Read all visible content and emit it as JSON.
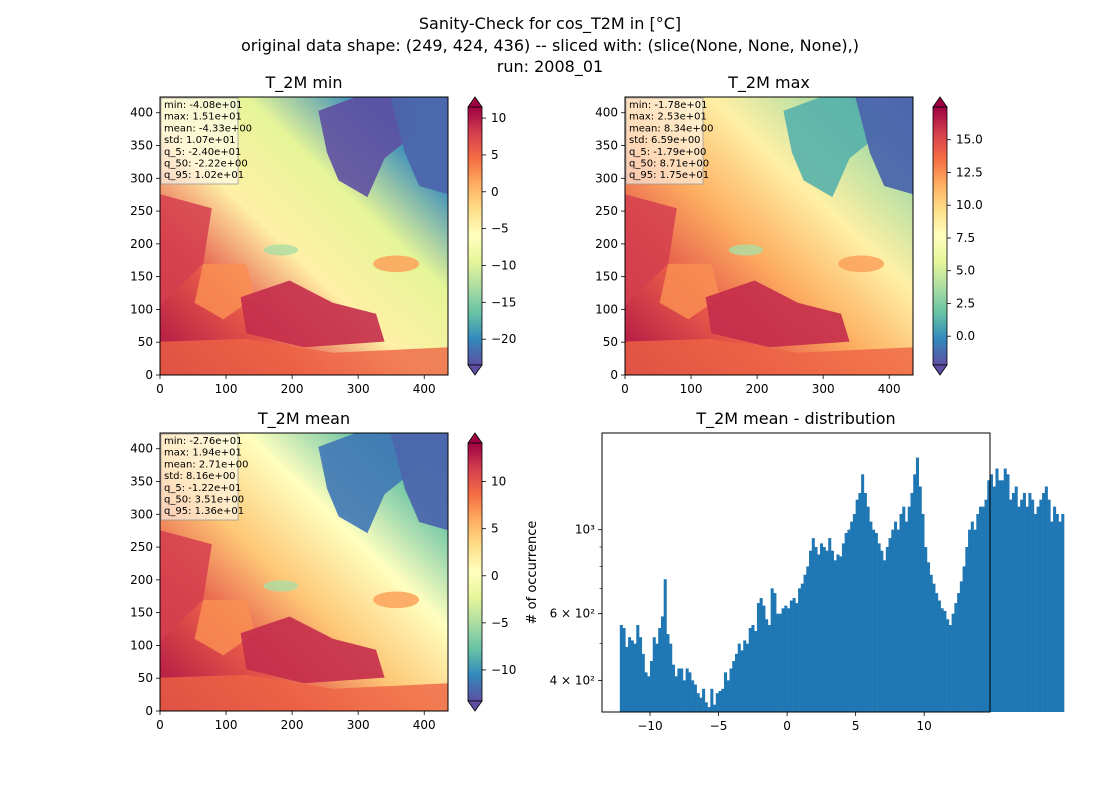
{
  "figure": {
    "suptitle_lines": [
      "Sanity-Check for cos_T2M in [°C]",
      "original data shape: (249, 424, 436) -- sliced with: (slice(None, None, None),)",
      "run: 2008_01"
    ]
  },
  "chart_data": [
    {
      "type": "heatmap",
      "title": "T_2M min",
      "xticks": [
        0,
        100,
        200,
        300,
        400
      ],
      "yticks": [
        0,
        50,
        100,
        150,
        200,
        250,
        300,
        350,
        400
      ],
      "xlim": [
        0,
        436
      ],
      "ylim": [
        0,
        424
      ],
      "colormap": "Spectral_r",
      "colorbar": {
        "range": [
          -23.5,
          11.5
        ],
        "ticks": [
          -20,
          -15,
          -10,
          -5,
          0,
          5,
          10
        ],
        "extend": "both"
      },
      "stats": [
        "min: -4.08e+01",
        "max: 1.51e+01",
        "mean: -4.33e+00",
        "std: 1.07e+01",
        "q_5: -2.40e+01",
        "q_50: -2.22e+00",
        "q_95: 1.02e+01"
      ]
    },
    {
      "type": "heatmap",
      "title": "T_2M max",
      "xticks": [
        0,
        100,
        200,
        300,
        400
      ],
      "yticks": [
        0,
        50,
        100,
        150,
        200,
        250,
        300,
        350,
        400
      ],
      "xlim": [
        0,
        436
      ],
      "ylim": [
        0,
        424
      ],
      "colormap": "Spectral_r",
      "colorbar": {
        "range": [
          -2.2,
          17.5
        ],
        "ticks": [
          "0.0",
          "2.5",
          "5.0",
          "7.5",
          "10.0",
          "12.5",
          "15.0"
        ],
        "extend": "both"
      },
      "stats": [
        "min: -1.78e+01",
        "max: 2.53e+01",
        "mean: 8.34e+00",
        "std: 6.59e+00",
        "q_5: -1.79e+00",
        "q_50: 8.71e+00",
        "q_95: 1.75e+01"
      ]
    },
    {
      "type": "heatmap",
      "title": "T_2M mean",
      "xticks": [
        0,
        100,
        200,
        300,
        400
      ],
      "yticks": [
        0,
        50,
        100,
        150,
        200,
        250,
        300,
        350,
        400
      ],
      "xlim": [
        0,
        436
      ],
      "ylim": [
        0,
        424
      ],
      "colormap": "Spectral_r",
      "colorbar": {
        "range": [
          -13.3,
          14.1
        ],
        "ticks": [
          -10,
          -5,
          0,
          5,
          10
        ],
        "extend": "both"
      },
      "stats": [
        "min: -2.76e+01",
        "max: 1.94e+01",
        "mean: 2.71e+00",
        "std: 8.16e+00",
        "q_5: -1.22e+01",
        "q_50: 3.51e+00",
        "q_95: 1.36e+01"
      ]
    },
    {
      "type": "bar",
      "title": "T_2M mean - distribution",
      "ylabel": "# of occurrence",
      "yscale": "log",
      "xlim": [
        -13.5,
        14.8
      ],
      "ylim": [
        330,
        1800
      ],
      "xticks": [
        -10,
        -5,
        0,
        5,
        10
      ],
      "yticks": [
        {
          "value": 400,
          "label": "4 × 10²"
        },
        {
          "value": 600,
          "label": "6 × 10²"
        },
        {
          "value": 1000,
          "label": "10³"
        }
      ],
      "color": "#1f77b4",
      "bin_start": -12.2,
      "bin_width": 0.2,
      "values": [
        560,
        550,
        490,
        520,
        510,
        500,
        560,
        520,
        470,
        420,
        410,
        450,
        520,
        500,
        550,
        590,
        740,
        530,
        500,
        440,
        410,
        430,
        430,
        400,
        430,
        420,
        400,
        390,
        370,
        360,
        380,
        350,
        340,
        380,
        345,
        370,
        375,
        380,
        420,
        400,
        430,
        450,
        470,
        500,
        480,
        510,
        500,
        550,
        560,
        540,
        640,
        660,
        630,
        580,
        560,
        700,
        680,
        600,
        600,
        620,
        630,
        620,
        650,
        660,
        640,
        700,
        720,
        760,
        800,
        880,
        950,
        900,
        860,
        920,
        900,
        880,
        950,
        880,
        830,
        860,
        850,
        920,
        980,
        1000,
        1050,
        1100,
        1200,
        1250,
        1400,
        1250,
        1150,
        1050,
        1000,
        980,
        920,
        880,
        830,
        900,
        950,
        1000,
        1050,
        1000,
        1100,
        1150,
        1050,
        1150,
        1250,
        1400,
        1550,
        1300,
        1100,
        900,
        820,
        760,
        720,
        680,
        650,
        620,
        610,
        580,
        560,
        600,
        640,
        680,
        730,
        800,
        900,
        1000,
        1050,
        1000,
        1100,
        1150,
        1150,
        1200,
        1350,
        1400,
        1300,
        1450,
        1350,
        1350,
        1450,
        1400,
        1200,
        1250,
        1300,
        1150,
        1200,
        1250,
        1150,
        1250,
        1200,
        1100,
        1150,
        1200,
        1250,
        1300,
        1200,
        1050,
        1150,
        1100,
        1050,
        1100
      ]
    }
  ]
}
